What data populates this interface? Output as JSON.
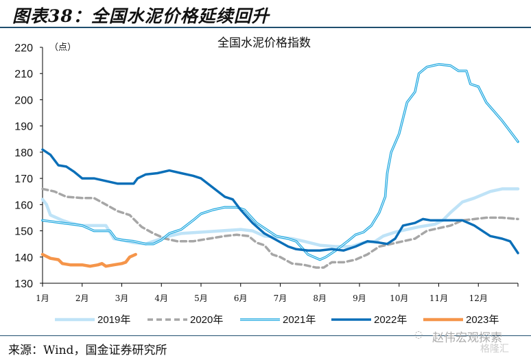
{
  "figure": {
    "title": "图表38：全国水泥价格延续回升",
    "source": "来源：Wind，国金证券研究所",
    "watermark": "赵伟宏观探索",
    "watermark2": "格隆汇"
  },
  "colors": {
    "s2019": "#bfe3f7",
    "s2020": "#a6a6a6",
    "s2021": "#1fa8e0",
    "s2022": "#0b6fb8",
    "s2023": "#f5954a",
    "axis": "#000000",
    "rule": "#1f4e6e"
  },
  "chart_data": {
    "type": "line",
    "title": "全国水泥价格指数",
    "ylabel": "（点）",
    "xlabel": "",
    "ylim": [
      130,
      220
    ],
    "xlim": [
      1,
      13
    ],
    "yticks": [
      130,
      140,
      150,
      160,
      170,
      180,
      190,
      200,
      210,
      220
    ],
    "xtick_labels": [
      "1月",
      "2月",
      "3月",
      "4月",
      "5月",
      "6月",
      "7月",
      "8月",
      "9月",
      "10月",
      "11月",
      "12月"
    ],
    "grid": false,
    "legend": "bottom",
    "series": [
      {
        "name": "2019年",
        "style": "solid-thick",
        "x": [
          1.0,
          1.1,
          1.2,
          1.5,
          1.7,
          2.0,
          2.6,
          2.8,
          3.0,
          3.3,
          3.6,
          3.9,
          4.2,
          4.5,
          5.0,
          5.5,
          6.0,
          6.3,
          6.6,
          7.0,
          7.3,
          7.6,
          8.0,
          8.4,
          8.8,
          9.1,
          9.4,
          9.6,
          9.9,
          10.2,
          10.5,
          10.9,
          11.1,
          11.3,
          11.6,
          11.9,
          12.3,
          12.6,
          13.0
        ],
        "values": [
          162,
          160,
          156,
          154,
          153,
          152,
          152,
          147,
          146.5,
          145.5,
          145,
          146.5,
          148,
          149,
          149.5,
          150,
          150.5,
          150,
          148,
          147.5,
          147,
          146,
          144.5,
          144,
          144,
          145.5,
          146,
          148,
          149.5,
          150.5,
          151.5,
          152.5,
          154,
          157,
          161,
          162.5,
          165,
          166,
          166
        ]
      },
      {
        "name": "2020年",
        "style": "dashed",
        "x": [
          1.0,
          1.3,
          1.6,
          2.0,
          2.3,
          2.6,
          2.9,
          3.2,
          3.5,
          3.8,
          4.1,
          4.4,
          4.8,
          5.2,
          5.6,
          5.9,
          6.2,
          6.4,
          6.6,
          6.8,
          7.0,
          7.3,
          7.6,
          7.9,
          8.1,
          8.3,
          8.6,
          8.9,
          9.2,
          9.5,
          9.8,
          10.1,
          10.4,
          10.7,
          11.0,
          11.3,
          11.6,
          11.9,
          12.2,
          12.6,
          13.0
        ],
        "values": [
          166,
          165,
          163,
          162.5,
          162.5,
          160,
          157.5,
          156,
          151.5,
          149,
          147,
          146,
          146,
          147,
          148,
          148.5,
          148,
          145.5,
          144.5,
          141,
          140,
          137.5,
          137,
          136,
          136,
          138,
          138,
          139,
          141,
          144,
          145,
          146,
          147,
          150,
          151,
          152,
          154,
          154.5,
          155,
          155,
          154.5
        ]
      },
      {
        "name": "2021年",
        "style": "double",
        "x": [
          1.0,
          1.5,
          2.0,
          2.3,
          2.7,
          2.85,
          3.0,
          3.3,
          3.6,
          3.8,
          4.0,
          4.2,
          4.5,
          4.8,
          5.0,
          5.3,
          5.6,
          5.9,
          6.1,
          6.4,
          6.6,
          6.9,
          7.2,
          7.4,
          7.7,
          8.0,
          8.15,
          8.4,
          8.7,
          8.9,
          9.1,
          9.3,
          9.5,
          9.65,
          9.7,
          9.8,
          10.0,
          10.2,
          10.4,
          10.5,
          10.7,
          11.0,
          11.3,
          11.5,
          11.7,
          11.8,
          12.0,
          12.2,
          12.4,
          12.6,
          12.8,
          13.0
        ],
        "values": [
          154,
          153,
          152,
          150,
          150,
          147,
          146.5,
          146,
          145,
          145,
          146.5,
          149,
          150.5,
          154,
          156.5,
          158,
          159,
          159,
          158,
          153,
          151,
          148,
          147,
          146,
          141,
          139,
          140,
          142.5,
          146,
          148.5,
          149.5,
          152,
          157,
          163,
          172,
          180,
          187,
          199,
          203,
          210,
          212.5,
          213.5,
          213,
          211,
          211,
          206,
          205,
          199,
          195.5,
          192,
          188,
          184
        ]
      },
      {
        "name": "2022年",
        "style": "solid-dark",
        "x": [
          1.0,
          1.2,
          1.4,
          1.6,
          1.8,
          2.0,
          2.3,
          2.6,
          2.9,
          3.0,
          3.3,
          3.4,
          3.6,
          3.9,
          4.2,
          4.5,
          4.8,
          5.0,
          5.3,
          5.6,
          5.8,
          6.0,
          6.3,
          6.6,
          6.9,
          7.2,
          7.4,
          7.7,
          8.0,
          8.3,
          8.6,
          8.9,
          9.2,
          9.5,
          9.7,
          9.9,
          10.1,
          10.4,
          10.6,
          10.8,
          11.0,
          11.3,
          11.6,
          11.9,
          12.1,
          12.3,
          12.6,
          12.8,
          13.0
        ],
        "values": [
          181,
          179,
          175,
          174.5,
          172.5,
          170,
          170,
          169,
          168,
          168,
          168,
          170,
          171.5,
          172,
          173,
          172,
          171,
          170,
          166.5,
          163,
          162,
          158,
          153,
          149,
          146.5,
          144,
          143,
          142.5,
          142.5,
          143,
          142.5,
          144,
          146,
          145.5,
          145,
          147,
          152,
          153,
          154.5,
          154,
          154,
          154,
          154,
          152,
          150,
          148,
          147,
          146,
          141.5
        ]
      },
      {
        "name": "2023年",
        "style": "solid-thick",
        "x": [
          1.0,
          1.2,
          1.4,
          1.5,
          1.7,
          2.0,
          2.2,
          2.4,
          2.5,
          2.6,
          2.8,
          3.0,
          3.1,
          3.2,
          3.35
        ],
        "values": [
          141,
          139.5,
          139,
          137.5,
          137,
          137,
          136.5,
          137,
          137.5,
          136.5,
          137,
          137.5,
          138,
          140,
          141
        ]
      }
    ]
  }
}
